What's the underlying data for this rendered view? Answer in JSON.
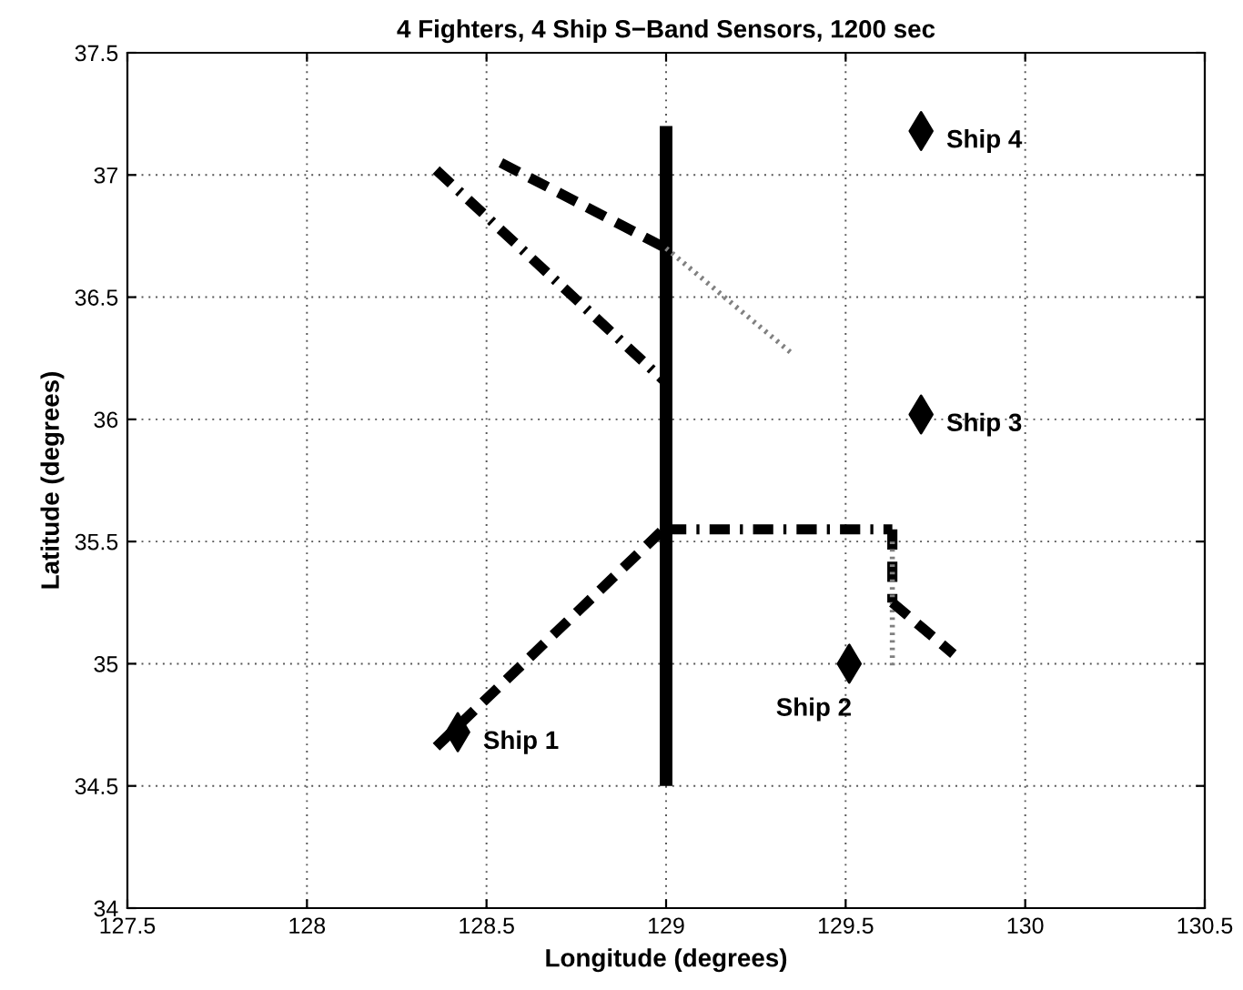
{
  "chart_data": {
    "type": "line",
    "title": "4 Fighters, 4 Ship S−Band Sensors, 1200 sec",
    "xlabel": "Longitude (degrees)",
    "ylabel": "Latitude (degrees)",
    "xlim": [
      127.5,
      130.5
    ],
    "xticks": [
      127.5,
      128,
      128.5,
      129,
      129.5,
      130,
      130.5
    ],
    "ylim": [
      34,
      37.5
    ],
    "yticks": [
      34,
      34.5,
      35,
      35.5,
      36,
      36.5,
      37,
      37.5
    ],
    "grid": true,
    "legend": false,
    "series": [
      {
        "color": "#000000",
        "line_style": "solid",
        "x": [
          129,
          129
        ],
        "values": [
          34.5,
          37.2
        ]
      },
      {
        "color": "#000000",
        "line_style": "dashdot",
        "x": [
          128.36,
          129
        ],
        "values": [
          37.02,
          36.15
        ]
      },
      {
        "color": "#000000",
        "line_style": "dashed",
        "x": [
          128.54,
          129
        ],
        "values": [
          37.05,
          36.7
        ]
      },
      {
        "color": "#808080",
        "line_style": "dotted",
        "x": [
          129,
          129.35
        ],
        "values": [
          36.7,
          36.27
        ]
      },
      {
        "color": "#000000",
        "line_style": "dashed",
        "x": [
          128.36,
          129
        ],
        "values": [
          34.66,
          35.56
        ]
      },
      {
        "color": "#000000",
        "line_style": "dashdot",
        "x": [
          129,
          129.63
        ],
        "values": [
          35.55,
          35.55
        ]
      },
      {
        "color": "#000000",
        "line_style": "dashed",
        "x": [
          129.63,
          129.63
        ],
        "values": [
          35.55,
          35.25
        ]
      },
      {
        "color": "#808080",
        "line_style": "dotted",
        "x": [
          129.63,
          129.63
        ],
        "values": [
          35.5,
          34.99
        ]
      },
      {
        "color": "#000000",
        "line_style": "dashed",
        "x": [
          129.63,
          129.8
        ],
        "values": [
          35.25,
          35.04
        ]
      },
      {
        "type": "scatter",
        "color": "#000000",
        "marker": "diamond",
        "x": [
          128.42,
          129.51,
          129.71,
          129.71
        ],
        "values": [
          34.72,
          35.0,
          36.02,
          37.18
        ]
      }
    ],
    "annotations": [
      {
        "text": "Ship 1",
        "x": 128.42,
        "y": 34.72
      },
      {
        "text": "Ship 2",
        "x": 129.51,
        "y": 35.0
      },
      {
        "text": "Ship 3",
        "x": 129.71,
        "y": 36.02
      },
      {
        "text": "Ship 4",
        "x": 129.71,
        "y": 37.18
      }
    ]
  }
}
